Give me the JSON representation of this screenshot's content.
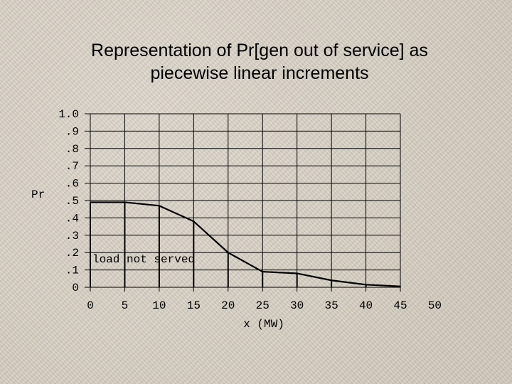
{
  "chart_data": {
    "type": "line",
    "title_line1": "Representation of  Pr[gen out of service] as",
    "title_line2": "piecewise linear increments",
    "ylabel": "Pr",
    "xlabel": "x (MW)",
    "y_tick_labels": [
      "0",
      ".1",
      ".2",
      ".3",
      ".4",
      ".5",
      ".6",
      ".7",
      ".8",
      ".9",
      "1.0"
    ],
    "x_tick_labels": [
      "0",
      "5",
      "10",
      "15",
      "20",
      "25",
      "30",
      "35",
      "40",
      "45",
      "50"
    ],
    "xlim": [
      0,
      50
    ],
    "ylim": [
      0,
      1.0
    ],
    "grid": true,
    "annotation": "load not served",
    "series": [
      {
        "x": [
          0,
          5,
          10,
          15,
          20,
          25,
          30,
          35,
          40,
          45
        ],
        "y": [
          0.49,
          0.49,
          0.47,
          0.38,
          0.2,
          0.09,
          0.08,
          0.04,
          0.015,
          0.005
        ],
        "color": "#000000"
      }
    ]
  }
}
